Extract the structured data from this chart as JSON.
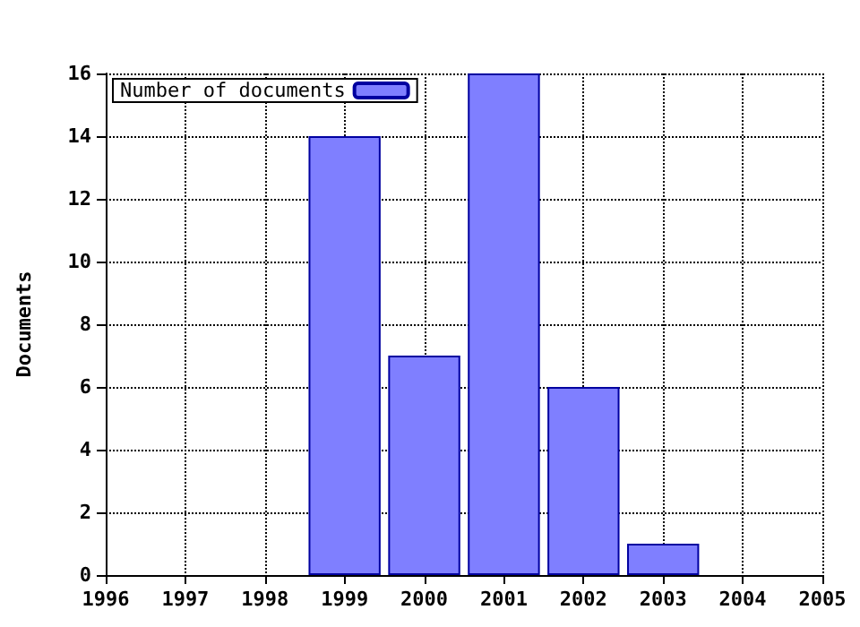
{
  "chart_data": {
    "type": "bar",
    "ylabel": "Documents",
    "x": [
      1999,
      2000,
      2001,
      2002,
      2003
    ],
    "series": [
      {
        "name": "Number of documents",
        "color": "#7f7fff",
        "values": [
          14,
          7,
          16,
          6,
          1
        ]
      }
    ],
    "xlim": [
      1996,
      2005
    ],
    "xticks": [
      1996,
      1997,
      1998,
      1999,
      2000,
      2001,
      2002,
      2003,
      2004,
      2005
    ],
    "ylim": [
      0,
      16
    ],
    "yticks": [
      0,
      2,
      4,
      6,
      8,
      10,
      12,
      14,
      16
    ],
    "grid": true,
    "legend": "top left"
  }
}
